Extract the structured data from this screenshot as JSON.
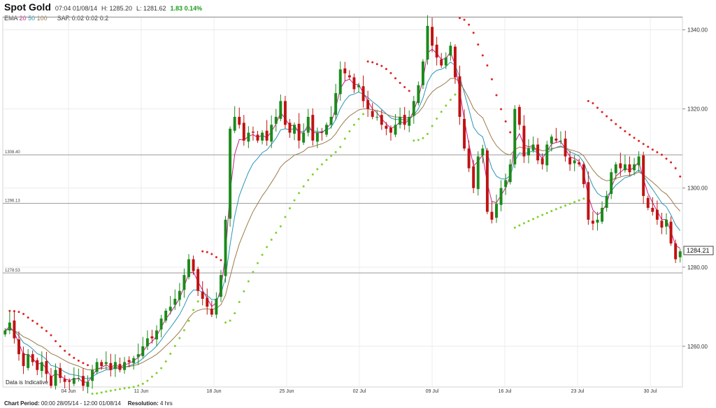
{
  "header": {
    "title": "Spot Gold",
    "timestamp": "07:04 01/08/14",
    "high": "H: 1285.20",
    "low": "L: 1281.62",
    "change": "1.83 0.14%"
  },
  "indicators": {
    "ema_label": "EMA",
    "ema_periods": [
      "20",
      "50",
      "100"
    ],
    "sar_label": "SAR",
    "sar_params": "0.02 0.02 0.2"
  },
  "footer": {
    "period_label": "Chart Period:",
    "period_value": "00:00 28/05/14 - 12:00 01/08/14",
    "resolution_label": "Resolution:",
    "resolution_value": "4 hrs"
  },
  "note": "Data is Indicative",
  "colors": {
    "up": "#1b8a1b",
    "down": "#c01212",
    "ema20": "#c51f8a",
    "ema50": "#2a95b8",
    "ema100": "#9a7a4a",
    "sar_up": "#7fd12a",
    "sar_down": "#e02121"
  },
  "chart_data": {
    "type": "candlestick",
    "x_tick_labels": [
      "04 Jun",
      "11 Jun",
      "18 Jun",
      "25 Jun",
      "02 Jul",
      "09 Jul",
      "16 Jul",
      "23 Jul",
      "30 Jul"
    ],
    "y_ticks": [
      1260,
      1280,
      1300,
      1320,
      1340
    ],
    "ylim": [
      1249.7,
      1343.3
    ],
    "reference_lines": [
      {
        "label": "1343.20",
        "value": 1343.2,
        "show_label": false
      },
      {
        "label": "1308.40",
        "value": 1308.4,
        "show_label": true
      },
      {
        "label": "1296.13",
        "value": 1296.13,
        "show_label": true
      },
      {
        "label": "1278.53",
        "value": 1278.53,
        "show_label": true
      }
    ],
    "last_price": "1284.21",
    "last_value": 1284.21,
    "closes": [
      1264,
      1266,
      1262,
      1258,
      1255,
      1258,
      1256,
      1254,
      1256,
      1253,
      1250,
      1254,
      1252,
      1251,
      1251,
      1252,
      1252,
      1250,
      1251,
      1254,
      1256,
      1255,
      1256,
      1254,
      1256,
      1254,
      1256,
      1256,
      1257,
      1258,
      1260,
      1262,
      1262,
      1264,
      1267,
      1269,
      1270,
      1272,
      1274,
      1278,
      1282,
      1279,
      1274,
      1272,
      1270,
      1268,
      1272,
      1278,
      1292,
      1315,
      1318,
      1316,
      1312,
      1314,
      1314,
      1312,
      1314,
      1312,
      1316,
      1318,
      1322,
      1316,
      1314,
      1316,
      1312,
      1314,
      1318,
      1312,
      1314,
      1314,
      1316,
      1318,
      1324,
      1330,
      1329,
      1328,
      1325,
      1326,
      1322,
      1320,
      1318,
      1318,
      1316,
      1315,
      1314,
      1316,
      1318,
      1316,
      1318,
      1322,
      1326,
      1332,
      1341,
      1336,
      1333,
      1331,
      1333,
      1336,
      1328,
      1318,
      1310,
      1305,
      1300,
      1308,
      1310,
      1294,
      1292,
      1296,
      1300,
      1302,
      1306,
      1320,
      1316,
      1308,
      1310,
      1311,
      1307,
      1306,
      1311,
      1313,
      1312,
      1312,
      1308,
      1306,
      1307,
      1306,
      1301,
      1292,
      1291,
      1292,
      1295,
      1298,
      1304,
      1306,
      1305,
      1306,
      1304,
      1306,
      1308,
      1298,
      1295,
      1294,
      1292,
      1290,
      1292,
      1286,
      1282,
      1284
    ]
  }
}
